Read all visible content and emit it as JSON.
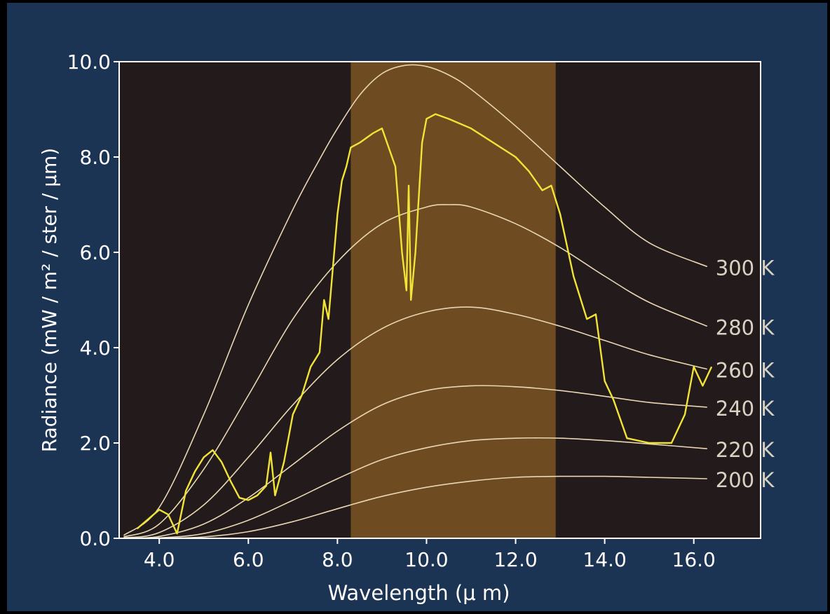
{
  "chart_data": {
    "type": "line",
    "xlabel": "Wavelength (μ m)",
    "ylabel": "Radiance (mW / m² / ster / μm)",
    "xlim": [
      3.1,
      17.5
    ],
    "ylim": [
      0,
      10
    ],
    "xticks": [
      "4.0",
      "6.0",
      "8.0",
      "10.0",
      "12.0",
      "14.0",
      "16.0"
    ],
    "xtick_values": [
      4,
      6,
      8,
      10,
      12,
      14,
      16
    ],
    "yticks": [
      "0.0",
      "2.0",
      "4.0",
      "6.0",
      "8.0",
      "10.0"
    ],
    "ytick_values": [
      0,
      2,
      4,
      6,
      8,
      10
    ],
    "highlight_band": [
      8.3,
      12.9
    ],
    "grid": false,
    "colors": {
      "plot_bg": "#231a1b",
      "band": "#6f4b22",
      "figure_bg": "#1c3454",
      "blackbody": "#e8d7b2",
      "measured": "#f2e437",
      "axis": "#ffffff",
      "label_text": "#d9d2c3"
    },
    "blackbody_series": [
      {
        "label": "300 K",
        "x": [
          3.2,
          4,
          5,
          6,
          7,
          7.6,
          8,
          8.5,
          9,
          9.5,
          10,
          10.5,
          11,
          12,
          13,
          14,
          15,
          16.3
        ],
        "y": [
          0.06,
          0.65,
          2.6,
          4.9,
          6.9,
          7.95,
          8.6,
          9.3,
          9.75,
          9.92,
          9.9,
          9.72,
          9.42,
          8.65,
          7.8,
          6.95,
          6.2,
          5.7
        ]
      },
      {
        "label": "280 K",
        "x": [
          3.2,
          4,
          5,
          6,
          7,
          8,
          9,
          10,
          10.5,
          11,
          12,
          13,
          14,
          15,
          16.3
        ],
        "y": [
          0.03,
          0.3,
          1.45,
          3.0,
          4.6,
          5.8,
          6.6,
          6.95,
          7.0,
          6.95,
          6.6,
          6.1,
          5.5,
          4.95,
          4.45
        ]
      },
      {
        "label": "260 K",
        "x": [
          3.2,
          4,
          5,
          6,
          7,
          8,
          9,
          10,
          11,
          12,
          13,
          14,
          15,
          16.3
        ],
        "y": [
          0.01,
          0.12,
          0.7,
          1.7,
          2.8,
          3.75,
          4.4,
          4.75,
          4.85,
          4.7,
          4.45,
          4.15,
          3.85,
          3.55
        ]
      },
      {
        "label": "240 K",
        "x": [
          3.2,
          4,
          5,
          6,
          7,
          8,
          9,
          10,
          11,
          12,
          13,
          14,
          15,
          16.3
        ],
        "y": [
          0,
          0.04,
          0.3,
          0.85,
          1.55,
          2.25,
          2.8,
          3.1,
          3.2,
          3.18,
          3.1,
          2.98,
          2.85,
          2.75
        ]
      },
      {
        "label": "220 K",
        "x": [
          3.2,
          4,
          5,
          6,
          7,
          8,
          9,
          10,
          11,
          12,
          13,
          14,
          15,
          16.3
        ],
        "y": [
          0,
          0.01,
          0.1,
          0.38,
          0.8,
          1.25,
          1.65,
          1.9,
          2.05,
          2.1,
          2.1,
          2.05,
          1.98,
          1.88
        ]
      },
      {
        "label": "200 K",
        "x": [
          3.2,
          4,
          5,
          6,
          7,
          8,
          9,
          10,
          11,
          12,
          13,
          14,
          15,
          16.3
        ],
        "y": [
          0,
          0,
          0.03,
          0.14,
          0.35,
          0.62,
          0.88,
          1.07,
          1.2,
          1.28,
          1.3,
          1.3,
          1.28,
          1.25
        ]
      }
    ],
    "measured_series": {
      "x": [
        3.5,
        4.0,
        4.2,
        4.4,
        4.6,
        4.8,
        5.0,
        5.2,
        5.4,
        5.6,
        5.8,
        6.0,
        6.2,
        6.4,
        6.5,
        6.6,
        6.8,
        7.0,
        7.2,
        7.4,
        7.6,
        7.7,
        7.8,
        7.9,
        8.0,
        8.1,
        8.2,
        8.3,
        8.5,
        8.8,
        9.0,
        9.3,
        9.45,
        9.55,
        9.6,
        9.65,
        9.75,
        9.9,
        10.0,
        10.2,
        10.5,
        11.0,
        11.5,
        12.0,
        12.3,
        12.6,
        12.8,
        13.0,
        13.3,
        13.6,
        13.8,
        14.0,
        14.2,
        14.5,
        15.0,
        15.5,
        15.8,
        16.0,
        16.2,
        16.4
      ],
      "y": [
        0.2,
        0.6,
        0.5,
        0.1,
        1.0,
        1.4,
        1.7,
        1.85,
        1.6,
        1.2,
        0.85,
        0.8,
        0.9,
        1.1,
        1.8,
        0.9,
        1.6,
        2.6,
        3.0,
        3.6,
        3.9,
        5.0,
        4.6,
        5.7,
        6.8,
        7.5,
        7.8,
        8.2,
        8.3,
        8.5,
        8.6,
        7.8,
        6.0,
        5.2,
        7.4,
        5.0,
        6.0,
        8.3,
        8.8,
        8.9,
        8.8,
        8.6,
        8.3,
        8.0,
        7.7,
        7.3,
        7.4,
        6.8,
        5.5,
        4.6,
        4.7,
        3.3,
        2.9,
        2.1,
        2.0,
        2.0,
        2.6,
        3.6,
        3.2,
        3.6
      ]
    }
  }
}
